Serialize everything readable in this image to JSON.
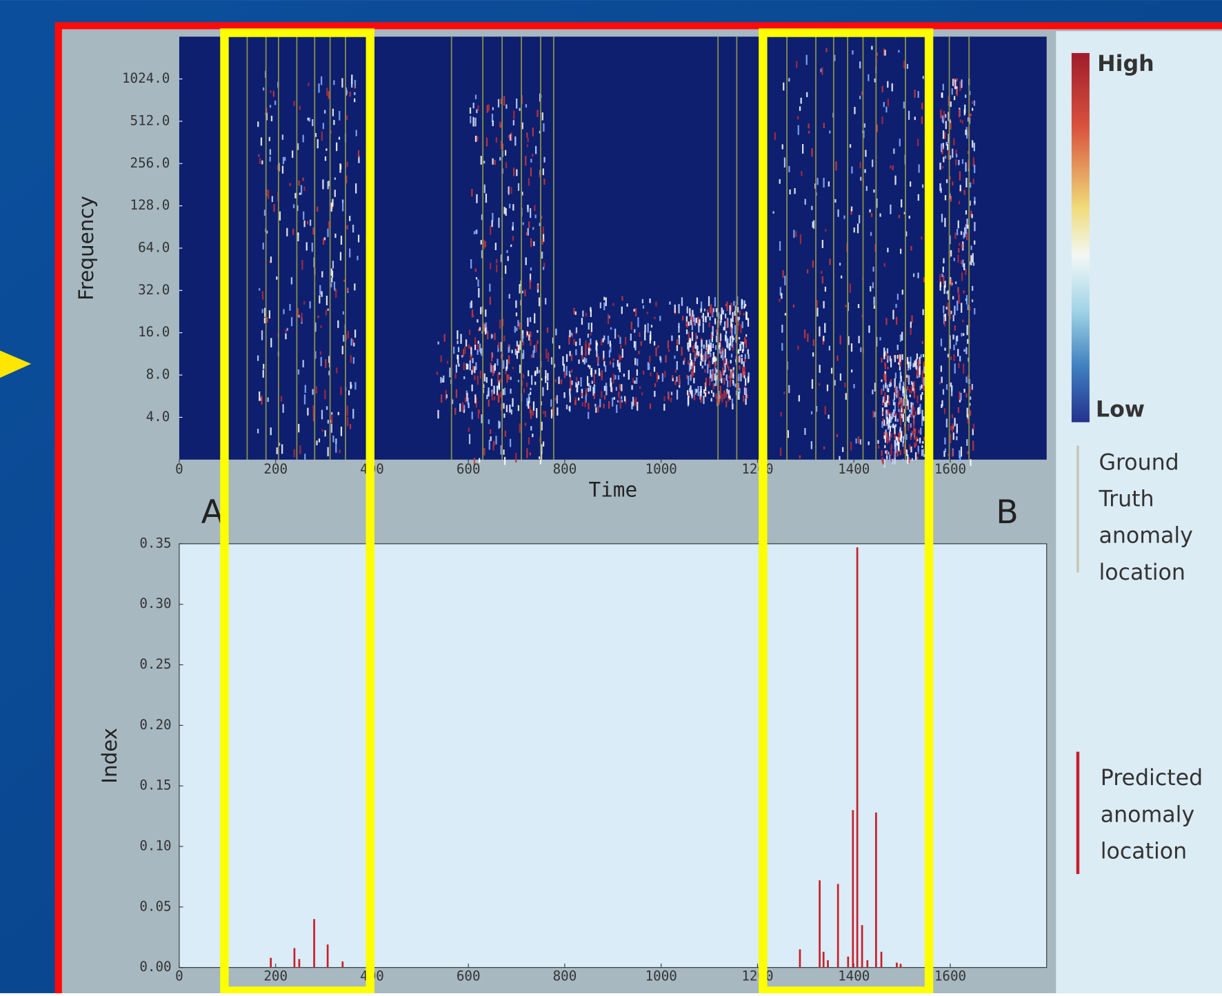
{
  "chart_data": [
    {
      "type": "heatmap",
      "xlabel": "Time",
      "ylabel": "Frequency",
      "yscale": "log",
      "xlim": [
        0,
        1800
      ],
      "xticks": [
        0,
        200,
        400,
        600,
        800,
        1000,
        1200,
        1400,
        1600
      ],
      "ylim": [
        2,
        2048
      ],
      "yticks": [
        {
          "value": 4,
          "label": "4.0"
        },
        {
          "value": 8,
          "label": "8.0"
        },
        {
          "value": 16,
          "label": "16.0"
        },
        {
          "value": 32,
          "label": "32.0"
        },
        {
          "value": 64,
          "label": "64.0"
        },
        {
          "value": 128,
          "label": "128.0"
        },
        {
          "value": 256,
          "label": "256.0"
        },
        {
          "value": 512,
          "label": "512.0"
        },
        {
          "value": 1024,
          "label": "1024.0"
        }
      ],
      "colorbar": {
        "high": "High",
        "low": "Low"
      },
      "ground_truth": {
        "name": [
          "Ground",
          "Truth",
          "anomaly",
          "location"
        ],
        "color": "#8a8f4a",
        "x": [
          141,
          180,
          206,
          244,
          281,
          313,
          345,
          565,
          630,
          670,
          710,
          750,
          777,
          1118,
          1157,
          1261,
          1321,
          1358,
          1387,
          1419,
          1446,
          1507,
          1558,
          1598,
          1639
        ]
      }
    },
    {
      "type": "bar",
      "ylabel": "Index",
      "annotations": [
        "A",
        "B"
      ],
      "xlim": [
        0,
        1800
      ],
      "xticks": [
        0,
        200,
        400,
        600,
        800,
        1000,
        1200,
        1400,
        1600
      ],
      "ylim": [
        0,
        0.35
      ],
      "yticks": [
        {
          "value": 0,
          "label": "0.00"
        },
        {
          "value": 0.05,
          "label": "0.05"
        },
        {
          "value": 0.1,
          "label": "0.10"
        },
        {
          "value": 0.15,
          "label": "0.15"
        },
        {
          "value": 0.2,
          "label": "0.20"
        },
        {
          "value": 0.25,
          "label": "0.25"
        },
        {
          "value": 0.3,
          "label": "0.30"
        },
        {
          "value": 0.35,
          "label": "0.35"
        }
      ],
      "series": [
        {
          "name": [
            "Predicted",
            "anomaly",
            "location"
          ],
          "color": "#c8202a",
          "x": [
            190,
            239,
            249,
            280,
            308,
            339,
            1288,
            1329,
            1337,
            1346,
            1367,
            1388,
            1398,
            1407,
            1417,
            1428,
            1446,
            1457,
            1489,
            1497
          ],
          "values": [
            0.008,
            0.016,
            0.007,
            0.04,
            0.019,
            0.005,
            0.015,
            0.072,
            0.013,
            0.006,
            0.069,
            0.009,
            0.13,
            0.347,
            0.035,
            0.006,
            0.128,
            0.013,
            0.004,
            0.003
          ]
        }
      ]
    }
  ]
}
